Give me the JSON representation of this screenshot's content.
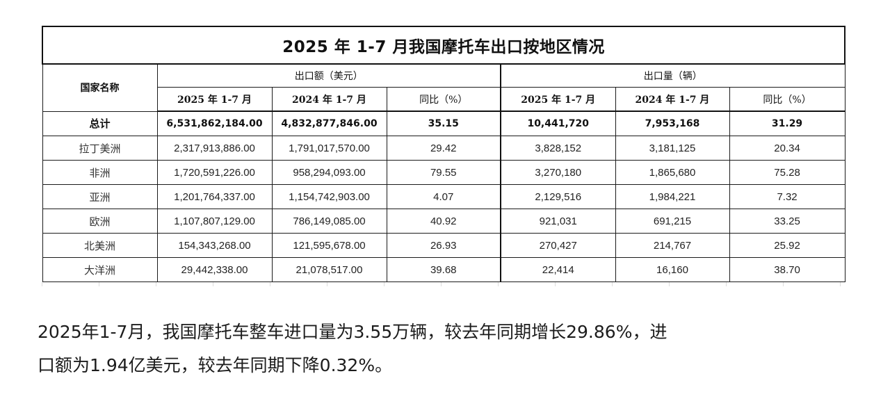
{
  "table": {
    "title": "2025 年 1-7 月我国摩托车出口按地区情况",
    "country_header": "国家名称",
    "amount_group": "出口额（美元）",
    "volume_group": "出口量（辆）",
    "amount_cols": [
      "2025 年 1-7 月",
      "2024 年 1-7 月",
      "同比（%）"
    ],
    "volume_cols": [
      "2025 年 1-7 月",
      "2024 年 1-7 月",
      "同比（%）"
    ],
    "total": {
      "name": "总计",
      "cells": [
        "6,531,862,184.00",
        "4,832,877,846.00",
        "35.15",
        "10,441,720",
        "7,953,168",
        "31.29"
      ]
    },
    "rows": [
      {
        "name": "拉丁美洲",
        "cells": [
          "2,317,913,886.00",
          "1,791,017,570.00",
          "29.42",
          "3,828,152",
          "3,181,125",
          "20.34"
        ]
      },
      {
        "name": "非洲",
        "cells": [
          "1,720,591,226.00",
          "958,294,093.00",
          "79.55",
          "3,270,180",
          "1,865,680",
          "75.28"
        ]
      },
      {
        "name": "亚洲",
        "cells": [
          "1,201,764,337.00",
          "1,154,742,903.00",
          "4.07",
          "2,129,516",
          "1,984,221",
          "7.32"
        ]
      },
      {
        "name": "欧洲",
        "cells": [
          "1,107,807,129.00",
          "786,149,085.00",
          "40.92",
          "921,031",
          "691,215",
          "33.25"
        ]
      },
      {
        "name": "北美洲",
        "cells": [
          "154,343,268.00",
          "121,595,678.00",
          "26.93",
          "270,427",
          "214,767",
          "25.92"
        ]
      },
      {
        "name": "大洋洲",
        "cells": [
          "29,442,338.00",
          "21,078,517.00",
          "39.68",
          "22,414",
          "16,160",
          "38.70"
        ]
      }
    ]
  },
  "note": {
    "line1": "2025年1-7月，我国摩托车整车进口量为3.55万辆，较去年同期增长29.86%，进",
    "line2": "口额为1.94亿美元，较去年同期下降0.32%。"
  }
}
